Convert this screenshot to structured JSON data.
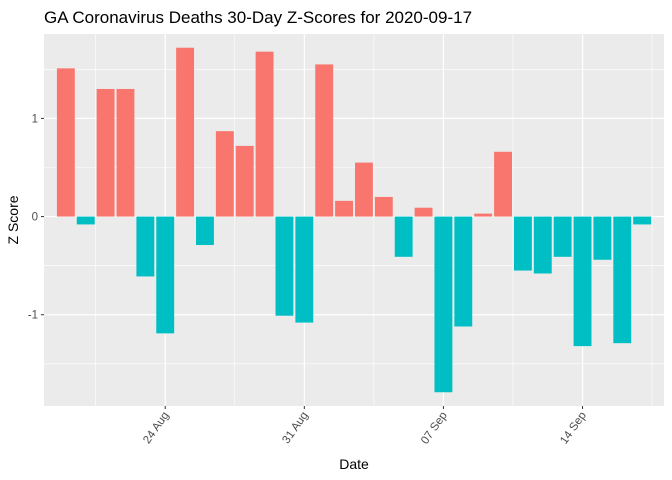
{
  "chart_data": {
    "type": "bar",
    "title": "GA Coronavirus Deaths 30-Day Z-Scores for 2020-09-17",
    "xlabel": "Date",
    "ylabel": "Z Score",
    "x": [
      "2020-08-19",
      "2020-08-20",
      "2020-08-21",
      "2020-08-22",
      "2020-08-23",
      "2020-08-24",
      "2020-08-25",
      "2020-08-26",
      "2020-08-27",
      "2020-08-28",
      "2020-08-29",
      "2020-08-30",
      "2020-08-31",
      "2020-09-01",
      "2020-09-02",
      "2020-09-03",
      "2020-09-04",
      "2020-09-05",
      "2020-09-06",
      "2020-09-07",
      "2020-09-08",
      "2020-09-09",
      "2020-09-10",
      "2020-09-11",
      "2020-09-12",
      "2020-09-13",
      "2020-09-14",
      "2020-09-15",
      "2020-09-16",
      "2020-09-17"
    ],
    "values": [
      1.51,
      -0.08,
      1.3,
      1.3,
      -0.61,
      -1.19,
      1.72,
      -0.29,
      0.87,
      0.72,
      1.68,
      -1.01,
      -1.08,
      1.55,
      0.16,
      0.55,
      0.2,
      -0.41,
      0.09,
      -1.79,
      -1.12,
      0.03,
      0.66,
      -0.55,
      -0.58,
      -0.41,
      -1.32,
      -0.44,
      -1.29,
      -0.08
    ],
    "x_ticks": [
      {
        "date": "2020-08-24",
        "label": "24 Aug"
      },
      {
        "date": "2020-08-31",
        "label": "31 Aug"
      },
      {
        "date": "2020-09-07",
        "label": "07 Sep"
      },
      {
        "date": "2020-09-14",
        "label": "14 Sep"
      }
    ],
    "y_ticks": [
      {
        "value": -1,
        "label": "-1"
      },
      {
        "value": 0,
        "label": "0"
      },
      {
        "value": 1,
        "label": "1"
      }
    ],
    "ylim": [
      -1.93,
      1.86
    ],
    "grid": true,
    "legend": "none",
    "colors": {
      "positive": "#F8766D",
      "negative": "#00BFC4",
      "panel": "#EBEBEB",
      "grid": "#FFFFFF"
    }
  }
}
